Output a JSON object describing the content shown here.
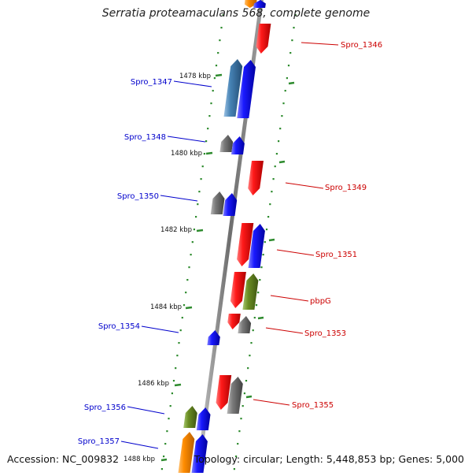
{
  "title": "Serratia proteamaculans 568, complete genome",
  "accession": "Accession: NC_009832",
  "summary": "Topology: circular; Length: 5,448,853 bp; Genes: 5,000",
  "colors": {
    "backbone": "#8a8a8a",
    "dots": "#2e8b2e",
    "forward_label": "#0000cc",
    "reverse_label": "#cc0000",
    "gene_red": "#ff0000",
    "gene_blue": "#0000ff",
    "gene_gray": "#707070",
    "gene_olive": "#6b8e23",
    "gene_orange": "#ff8c00",
    "gene_steel": "#4682b4"
  },
  "ticks": [
    {
      "label": "1478 kbp"
    },
    {
      "label": "1480 kbp"
    },
    {
      "label": "1482 kbp"
    },
    {
      "label": "1484 kbp"
    },
    {
      "label": "1486 kbp"
    },
    {
      "label": "1488 kbp"
    }
  ],
  "gene_labels": [
    {
      "name": "Spro_1346",
      "strand": "reverse"
    },
    {
      "name": "Spro_1347",
      "strand": "forward"
    },
    {
      "name": "Spro_1348",
      "strand": "forward"
    },
    {
      "name": "Spro_1349",
      "strand": "reverse"
    },
    {
      "name": "Spro_1350",
      "strand": "forward"
    },
    {
      "name": "Spro_1351",
      "strand": "reverse"
    },
    {
      "name": "pbpG",
      "strand": "reverse"
    },
    {
      "name": "Spro_1353",
      "strand": "reverse"
    },
    {
      "name": "Spro_1354",
      "strand": "forward"
    },
    {
      "name": "Spro_1355",
      "strand": "reverse"
    },
    {
      "name": "Spro_1356",
      "strand": "forward"
    },
    {
      "name": "Spro_1357",
      "strand": "forward"
    }
  ]
}
